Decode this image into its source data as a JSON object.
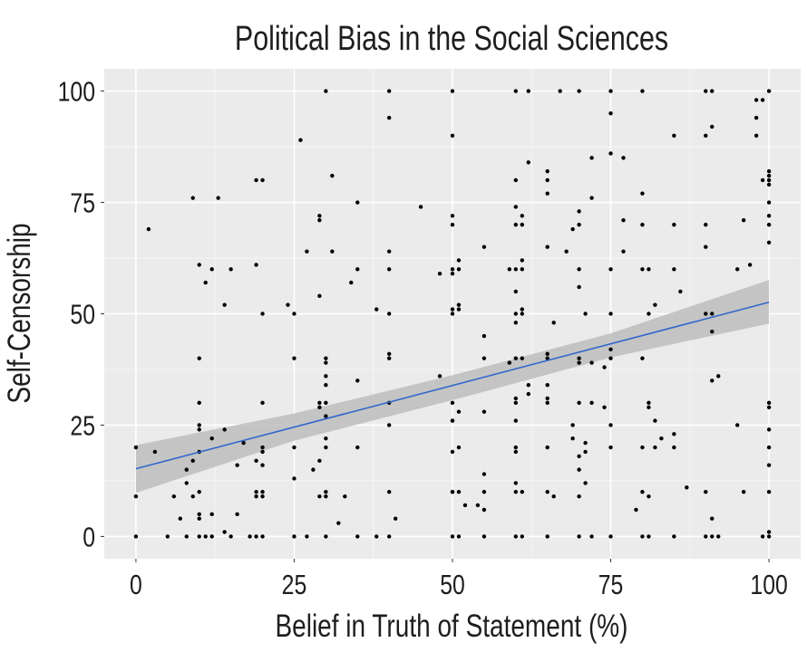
{
  "chart_data": {
    "type": "scatter",
    "title": "Political Bias in the Social Sciences",
    "xlabel": "Belief in Truth of Statement (%)",
    "ylabel": "Self-Censorship",
    "xlim": [
      -5,
      105
    ],
    "ylim": [
      -5,
      105
    ],
    "xticks": [
      0,
      25,
      50,
      75,
      100
    ],
    "xtick_labels": [
      "0",
      "25",
      "50",
      "75",
      "100"
    ],
    "yticks": [
      0,
      25,
      50,
      75,
      100
    ],
    "ytick_labels": [
      "0",
      "25",
      "50",
      "75",
      "100"
    ],
    "grid": true,
    "colors": {
      "panel": "#ebebeb",
      "grid": "#ffffff",
      "point": "#000000",
      "fit_line": "#3366cc",
      "ribbon": "#bdbdbd"
    },
    "fit": {
      "method": "linear",
      "intercept": 15.2,
      "slope": 0.374,
      "ci_band": [
        {
          "x": 0,
          "lower": 9.8,
          "upper": 20.5
        },
        {
          "x": 25,
          "lower": 21.5,
          "upper": 27.6
        },
        {
          "x": 50,
          "lower": 30.6,
          "upper": 36.2
        },
        {
          "x": 75,
          "lower": 40.2,
          "upper": 45.6
        },
        {
          "x": 100,
          "lower": 47.8,
          "upper": 57.6
        }
      ]
    },
    "points": [
      [
        30,
        100
      ],
      [
        40,
        100
      ],
      [
        50,
        100
      ],
      [
        40,
        94
      ],
      [
        50,
        90
      ],
      [
        26,
        89
      ],
      [
        19,
        80
      ],
      [
        20,
        80
      ],
      [
        31,
        81
      ],
      [
        9,
        76
      ],
      [
        13,
        76
      ],
      [
        35,
        75
      ],
      [
        45,
        74
      ],
      [
        29,
        72
      ],
      [
        29,
        71
      ],
      [
        50,
        72
      ],
      [
        50,
        70
      ],
      [
        2,
        69
      ],
      [
        27,
        64
      ],
      [
        31,
        64
      ],
      [
        40,
        64
      ],
      [
        10,
        61
      ],
      [
        12,
        60
      ],
      [
        15,
        60
      ],
      [
        19,
        61
      ],
      [
        35,
        60
      ],
      [
        40,
        60
      ],
      [
        48,
        59
      ],
      [
        50,
        59
      ],
      [
        11,
        57
      ],
      [
        34,
        57
      ],
      [
        29,
        54
      ],
      [
        14,
        52
      ],
      [
        24,
        52
      ],
      [
        20,
        50
      ],
      [
        25,
        50
      ],
      [
        38,
        51
      ],
      [
        40,
        50
      ],
      [
        50,
        51
      ],
      [
        50,
        50
      ],
      [
        60,
        100
      ],
      [
        62,
        100
      ],
      [
        67,
        100
      ],
      [
        70,
        100
      ],
      [
        75,
        100
      ],
      [
        80,
        100
      ],
      [
        90,
        100
      ],
      [
        91,
        100
      ],
      [
        100,
        100
      ],
      [
        98,
        98
      ],
      [
        99,
        98
      ],
      [
        75,
        95
      ],
      [
        98,
        94
      ],
      [
        91,
        92
      ],
      [
        85,
        90
      ],
      [
        90,
        90
      ],
      [
        98,
        90
      ],
      [
        62,
        84
      ],
      [
        72,
        85
      ],
      [
        75,
        86
      ],
      [
        77,
        85
      ],
      [
        65,
        82
      ],
      [
        65,
        80
      ],
      [
        65,
        77
      ],
      [
        60,
        80
      ],
      [
        80,
        77
      ],
      [
        72,
        76
      ],
      [
        100,
        82
      ],
      [
        100,
        81
      ],
      [
        100,
        80
      ],
      [
        100,
        79
      ],
      [
        99,
        80
      ],
      [
        100,
        75
      ],
      [
        60,
        74
      ],
      [
        61,
        72
      ],
      [
        60,
        70
      ],
      [
        61,
        70
      ],
      [
        70,
        73
      ],
      [
        70,
        70
      ],
      [
        69,
        69
      ],
      [
        77,
        71
      ],
      [
        80,
        70
      ],
      [
        85,
        70
      ],
      [
        90,
        70
      ],
      [
        96,
        71
      ],
      [
        100,
        72
      ],
      [
        100,
        70
      ],
      [
        55,
        65
      ],
      [
        65,
        65
      ],
      [
        68,
        64
      ],
      [
        77,
        64
      ],
      [
        90,
        65
      ],
      [
        100,
        66
      ],
      [
        51,
        62
      ],
      [
        51,
        60
      ],
      [
        50,
        60
      ],
      [
        59,
        60
      ],
      [
        60,
        60
      ],
      [
        61,
        60
      ],
      [
        61,
        62
      ],
      [
        70,
        60
      ],
      [
        70,
        56
      ],
      [
        75,
        60
      ],
      [
        80,
        60
      ],
      [
        81,
        60
      ],
      [
        85,
        60
      ],
      [
        95,
        60
      ],
      [
        97,
        61
      ],
      [
        60,
        55
      ],
      [
        86,
        55
      ],
      [
        82,
        52
      ],
      [
        51,
        52
      ],
      [
        51,
        51
      ],
      [
        60,
        50
      ],
      [
        61,
        51
      ],
      [
        61,
        50
      ],
      [
        71,
        50
      ],
      [
        75,
        50
      ],
      [
        81,
        50
      ],
      [
        90,
        50
      ],
      [
        91,
        50
      ],
      [
        10,
        40
      ],
      [
        25,
        40
      ],
      [
        30,
        40
      ],
      [
        30,
        39
      ],
      [
        40,
        41
      ],
      [
        40,
        40
      ],
      [
        30,
        36
      ],
      [
        30,
        34
      ],
      [
        35,
        35
      ],
      [
        48,
        36
      ],
      [
        10,
        30
      ],
      [
        20,
        30
      ],
      [
        29,
        30
      ],
      [
        30,
        30
      ],
      [
        29,
        29
      ],
      [
        40,
        30
      ],
      [
        50,
        30
      ],
      [
        30,
        27
      ],
      [
        10,
        25
      ],
      [
        10,
        24
      ],
      [
        14,
        24
      ],
      [
        40,
        25
      ],
      [
        50,
        26
      ],
      [
        12,
        22
      ],
      [
        30,
        22
      ],
      [
        0,
        20
      ],
      [
        3,
        19
      ],
      [
        10,
        19
      ],
      [
        17,
        21
      ],
      [
        20,
        20
      ],
      [
        20,
        19
      ],
      [
        25,
        20
      ],
      [
        30,
        20
      ],
      [
        35,
        20
      ],
      [
        50,
        19
      ],
      [
        9,
        17
      ],
      [
        8,
        15
      ],
      [
        19,
        17
      ],
      [
        16,
        16
      ],
      [
        20,
        16
      ],
      [
        29,
        17
      ],
      [
        28,
        15
      ],
      [
        8,
        12
      ],
      [
        25,
        13
      ],
      [
        0,
        9
      ],
      [
        6,
        9
      ],
      [
        9,
        9
      ],
      [
        10,
        10
      ],
      [
        19,
        10
      ],
      [
        19,
        9
      ],
      [
        20,
        10
      ],
      [
        20,
        9
      ],
      [
        29,
        9
      ],
      [
        30,
        9
      ],
      [
        30,
        10
      ],
      [
        33,
        9
      ],
      [
        40,
        10
      ],
      [
        50,
        10
      ],
      [
        7,
        4
      ],
      [
        10,
        5
      ],
      [
        10,
        4
      ],
      [
        12,
        5
      ],
      [
        16,
        5
      ],
      [
        32,
        3
      ],
      [
        41,
        4
      ],
      [
        14,
        1
      ],
      [
        0,
        0
      ],
      [
        5,
        0
      ],
      [
        8,
        0
      ],
      [
        10,
        0
      ],
      [
        11,
        0
      ],
      [
        12,
        0
      ],
      [
        15,
        0
      ],
      [
        18,
        0
      ],
      [
        19,
        0
      ],
      [
        20,
        0
      ],
      [
        25,
        0
      ],
      [
        27,
        0
      ],
      [
        30,
        0
      ],
      [
        35,
        0
      ],
      [
        38,
        0
      ],
      [
        40,
        0
      ],
      [
        50,
        0
      ],
      [
        60,
        48
      ],
      [
        66,
        48
      ],
      [
        55,
        45
      ],
      [
        91,
        46
      ],
      [
        55,
        40
      ],
      [
        59,
        39
      ],
      [
        60,
        40
      ],
      [
        61,
        40
      ],
      [
        65,
        41
      ],
      [
        65,
        40
      ],
      [
        70,
        40
      ],
      [
        70,
        39
      ],
      [
        72,
        39
      ],
      [
        74,
        38
      ],
      [
        75,
        42
      ],
      [
        75,
        40
      ],
      [
        80,
        40
      ],
      [
        91,
        35
      ],
      [
        92,
        36
      ],
      [
        62,
        34
      ],
      [
        62,
        32
      ],
      [
        65,
        34
      ],
      [
        60,
        31
      ],
      [
        60,
        30
      ],
      [
        65,
        31
      ],
      [
        65,
        30
      ],
      [
        51,
        28
      ],
      [
        55,
        28
      ],
      [
        70,
        30
      ],
      [
        72,
        30
      ],
      [
        74,
        29
      ],
      [
        81,
        30
      ],
      [
        81,
        29
      ],
      [
        100,
        30
      ],
      [
        100,
        29
      ],
      [
        50,
        26
      ],
      [
        60,
        26
      ],
      [
        69,
        25
      ],
      [
        75,
        25
      ],
      [
        82,
        26
      ],
      [
        95,
        25
      ],
      [
        100,
        24
      ],
      [
        69,
        22
      ],
      [
        71,
        21
      ],
      [
        71,
        19
      ],
      [
        70,
        18
      ],
      [
        83,
        22
      ],
      [
        85,
        23
      ],
      [
        51,
        20
      ],
      [
        60,
        20
      ],
      [
        60,
        19
      ],
      [
        65,
        20
      ],
      [
        75,
        20
      ],
      [
        80,
        20
      ],
      [
        82,
        20
      ],
      [
        85,
        20
      ],
      [
        100,
        20
      ],
      [
        100,
        16
      ],
      [
        70,
        15
      ],
      [
        55,
        14
      ],
      [
        60,
        12
      ],
      [
        71,
        12
      ],
      [
        50,
        10
      ],
      [
        51,
        10
      ],
      [
        55,
        10
      ],
      [
        60,
        10
      ],
      [
        61,
        10
      ],
      [
        65,
        10
      ],
      [
        66,
        9
      ],
      [
        70,
        9
      ],
      [
        80,
        10
      ],
      [
        81,
        9
      ],
      [
        87,
        11
      ],
      [
        90,
        10
      ],
      [
        96,
        10
      ],
      [
        100,
        10
      ],
      [
        52,
        7
      ],
      [
        54,
        7
      ],
      [
        55,
        6
      ],
      [
        79,
        6
      ],
      [
        91,
        4
      ],
      [
        100,
        1
      ],
      [
        51,
        0
      ],
      [
        55,
        0
      ],
      [
        60,
        0
      ],
      [
        61,
        0
      ],
      [
        65,
        0
      ],
      [
        70,
        0
      ],
      [
        72,
        0
      ],
      [
        75,
        0
      ],
      [
        80,
        0
      ],
      [
        81,
        0
      ],
      [
        85,
        0
      ],
      [
        90,
        0
      ],
      [
        91,
        0
      ],
      [
        92,
        0
      ],
      [
        99,
        0
      ],
      [
        100,
        0
      ]
    ]
  }
}
